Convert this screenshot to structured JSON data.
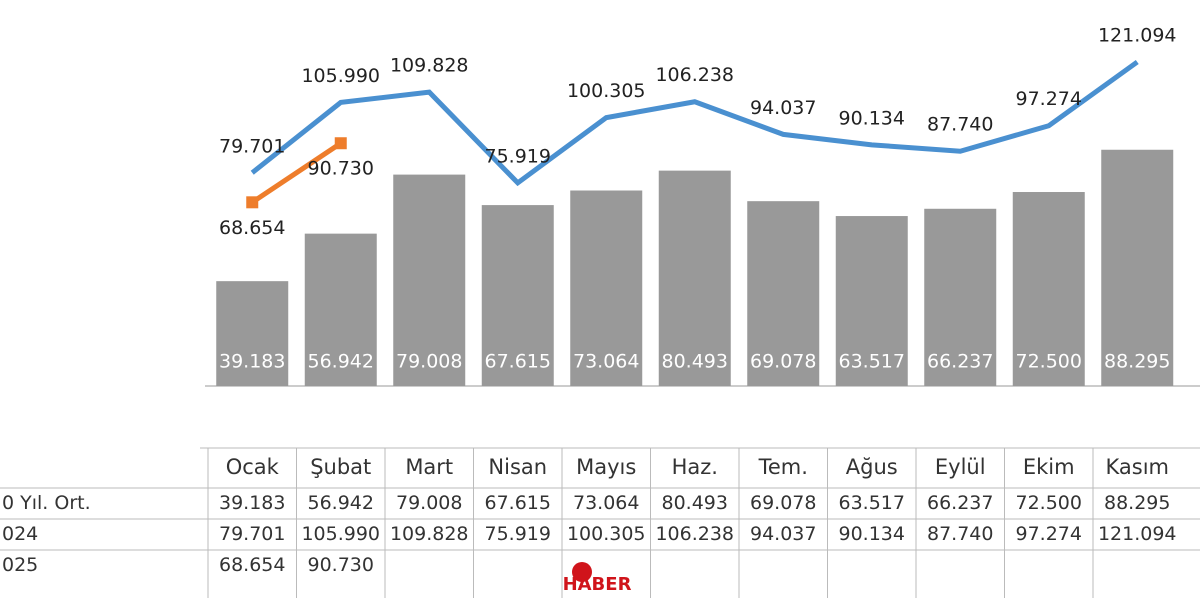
{
  "chart_data": {
    "type": "bar",
    "categories": [
      "Ocak",
      "Şubat",
      "Mart",
      "Nisan",
      "Mayıs",
      "Haz.",
      "Tem.",
      "Ağus",
      "Eylül",
      "Ekim",
      "Kasım"
    ],
    "series": [
      {
        "name": "0 Yıl. Ort.",
        "color": "#999999",
        "kind": "bar",
        "values": [
          39183,
          56942,
          79008,
          67615,
          73064,
          80493,
          69078,
          63517,
          66237,
          72500,
          88295
        ],
        "value_labels": [
          "39.183",
          "56.942",
          "79.008",
          "67.615",
          "73.064",
          "80.493",
          "69.078",
          "63.517",
          "66.237",
          "72.500",
          "88.295"
        ]
      },
      {
        "name": "024",
        "color": "#4a90d0",
        "kind": "line",
        "values": [
          79701,
          105990,
          109828,
          75919,
          100305,
          106238,
          94037,
          90134,
          87740,
          97274,
          121094
        ],
        "value_labels": [
          "79.701",
          "105.990",
          "109.828",
          "75.919",
          "100.305",
          "106.238",
          "94.037",
          "90.134",
          "87.740",
          "97.274",
          "121.094"
        ]
      },
      {
        "name": "025",
        "color": "#ee7d2b",
        "kind": "line",
        "values": [
          68654,
          90730,
          null,
          null,
          null,
          null,
          null,
          null,
          null,
          null,
          null
        ],
        "value_labels": [
          "68.654",
          "90.730",
          null,
          null,
          null,
          null,
          null,
          null,
          null,
          null,
          null
        ]
      }
    ],
    "watermark": "HABER"
  }
}
